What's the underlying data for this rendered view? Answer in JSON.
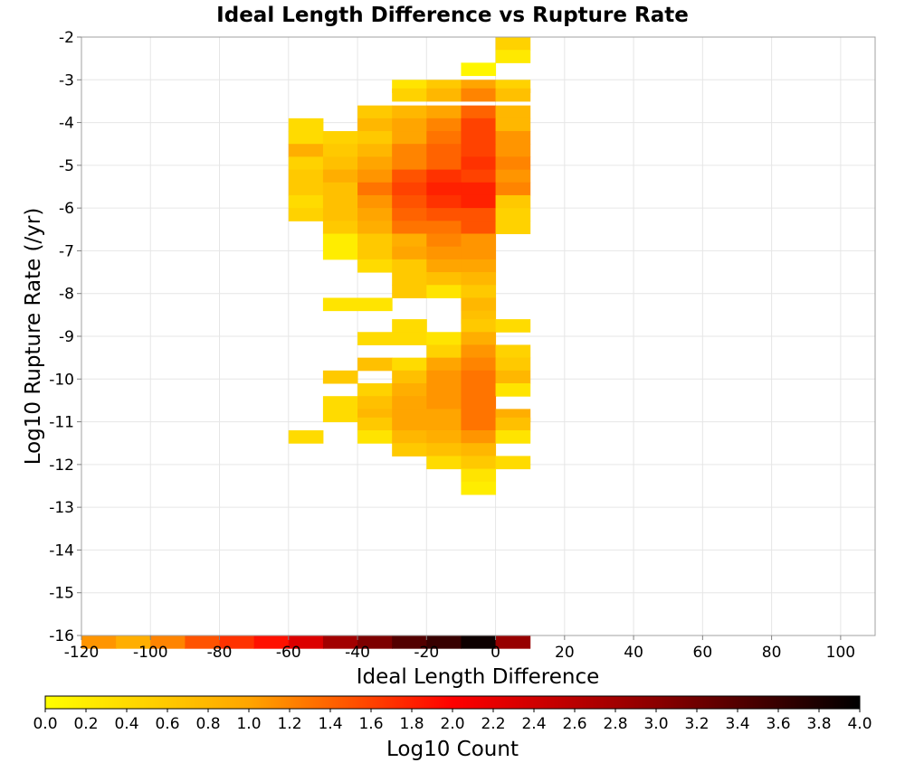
{
  "chart_data": {
    "type": "heatmap",
    "title": "Ideal Length Difference vs Rupture Rate",
    "xlabel": "Ideal Length Difference",
    "ylabel": "Log10 Rupture Rate (/yr)",
    "xlim": [
      -120,
      110
    ],
    "ylim": [
      -16,
      -2
    ],
    "xticks": [
      -120,
      -100,
      -80,
      -60,
      -40,
      -20,
      0,
      20,
      40,
      60,
      80,
      100
    ],
    "yticks": [
      -2,
      -3,
      -4,
      -5,
      -6,
      -7,
      -8,
      -9,
      -10,
      -11,
      -12,
      -13,
      -14,
      -15,
      -16
    ],
    "grid": true,
    "x_bin_width": 10,
    "y_bin_height": 0.3,
    "colorbar": {
      "label": "Log10 Count",
      "range": [
        0,
        4
      ],
      "ticks": [
        "0.0",
        "0.2",
        "0.4",
        "0.6",
        "0.8",
        "1.0",
        "1.2",
        "1.4",
        "1.6",
        "1.8",
        "2.0",
        "2.2",
        "2.4",
        "2.6",
        "2.8",
        "3.0",
        "3.2",
        "3.4",
        "3.6",
        "3.8",
        "4.0"
      ],
      "colors": [
        "#ffff00",
        "#ffa500",
        "#ff0000",
        "#8b0000",
        "#000000"
      ],
      "placement": "bottom"
    },
    "cells": [
      {
        "x": 0,
        "y": -2,
        "v": 0.5
      },
      {
        "x": 0,
        "y": -2.3,
        "v": 0.25
      },
      {
        "x": -10,
        "y": -2.6,
        "v": 0.1
      },
      {
        "x": -30,
        "y": -3.0,
        "v": 0.3
      },
      {
        "x": -20,
        "y": -3.0,
        "v": 0.6
      },
      {
        "x": -10,
        "y": -3.0,
        "v": 1.0
      },
      {
        "x": 0,
        "y": -3.0,
        "v": 0.5
      },
      {
        "x": -30,
        "y": -3.2,
        "v": 0.5
      },
      {
        "x": -20,
        "y": -3.2,
        "v": 0.8
      },
      {
        "x": -10,
        "y": -3.2,
        "v": 1.2
      },
      {
        "x": 0,
        "y": -3.2,
        "v": 0.7
      },
      {
        "x": -40,
        "y": -3.6,
        "v": 0.6
      },
      {
        "x": -30,
        "y": -3.6,
        "v": 0.8
      },
      {
        "x": -20,
        "y": -3.6,
        "v": 1.0
      },
      {
        "x": -10,
        "y": -3.6,
        "v": 1.4
      },
      {
        "x": 0,
        "y": -3.6,
        "v": 0.8
      },
      {
        "x": -60,
        "y": -3.9,
        "v": 0.4
      },
      {
        "x": -40,
        "y": -3.9,
        "v": 0.8
      },
      {
        "x": -30,
        "y": -3.9,
        "v": 1.0
      },
      {
        "x": -20,
        "y": -3.9,
        "v": 1.2
      },
      {
        "x": -10,
        "y": -3.9,
        "v": 1.6
      },
      {
        "x": 0,
        "y": -3.9,
        "v": 0.8
      },
      {
        "x": -60,
        "y": -4.2,
        "v": 0.4
      },
      {
        "x": -50,
        "y": -4.2,
        "v": 0.5
      },
      {
        "x": -40,
        "y": -4.2,
        "v": 0.6
      },
      {
        "x": -30,
        "y": -4.2,
        "v": 1.0
      },
      {
        "x": -20,
        "y": -4.2,
        "v": 1.3
      },
      {
        "x": -10,
        "y": -4.2,
        "v": 1.6
      },
      {
        "x": 0,
        "y": -4.2,
        "v": 1.1
      },
      {
        "x": -60,
        "y": -4.5,
        "v": 0.9
      },
      {
        "x": -50,
        "y": -4.5,
        "v": 0.6
      },
      {
        "x": -40,
        "y": -4.5,
        "v": 0.8
      },
      {
        "x": -30,
        "y": -4.5,
        "v": 1.2
      },
      {
        "x": -20,
        "y": -4.5,
        "v": 1.4
      },
      {
        "x": -10,
        "y": -4.5,
        "v": 1.6
      },
      {
        "x": 0,
        "y": -4.5,
        "v": 1.1
      },
      {
        "x": -60,
        "y": -4.8,
        "v": 0.5
      },
      {
        "x": -50,
        "y": -4.8,
        "v": 0.7
      },
      {
        "x": -40,
        "y": -4.8,
        "v": 1.0
      },
      {
        "x": -30,
        "y": -4.8,
        "v": 1.2
      },
      {
        "x": -20,
        "y": -4.8,
        "v": 1.4
      },
      {
        "x": -10,
        "y": -4.8,
        "v": 1.7
      },
      {
        "x": 0,
        "y": -4.8,
        "v": 1.2
      },
      {
        "x": -60,
        "y": -5.1,
        "v": 0.6
      },
      {
        "x": -50,
        "y": -5.1,
        "v": 0.9
      },
      {
        "x": -40,
        "y": -5.1,
        "v": 1.1
      },
      {
        "x": -30,
        "y": -5.1,
        "v": 1.5
      },
      {
        "x": -20,
        "y": -5.1,
        "v": 1.7
      },
      {
        "x": -10,
        "y": -5.1,
        "v": 1.6
      },
      {
        "x": 0,
        "y": -5.1,
        "v": 1.1
      },
      {
        "x": -60,
        "y": -5.4,
        "v": 0.6
      },
      {
        "x": -50,
        "y": -5.4,
        "v": 0.7
      },
      {
        "x": -40,
        "y": -5.4,
        "v": 1.3
      },
      {
        "x": -30,
        "y": -5.4,
        "v": 1.6
      },
      {
        "x": -20,
        "y": -5.4,
        "v": 1.8
      },
      {
        "x": -10,
        "y": -5.4,
        "v": 1.8
      },
      {
        "x": 0,
        "y": -5.4,
        "v": 1.2
      },
      {
        "x": -60,
        "y": -5.7,
        "v": 0.4
      },
      {
        "x": -50,
        "y": -5.7,
        "v": 0.7
      },
      {
        "x": -40,
        "y": -5.7,
        "v": 1.1
      },
      {
        "x": -30,
        "y": -5.7,
        "v": 1.5
      },
      {
        "x": -20,
        "y": -5.7,
        "v": 1.7
      },
      {
        "x": -10,
        "y": -5.7,
        "v": 1.8
      },
      {
        "x": 0,
        "y": -5.7,
        "v": 0.6
      },
      {
        "x": -60,
        "y": -6.0,
        "v": 0.5
      },
      {
        "x": -50,
        "y": -6.0,
        "v": 0.7
      },
      {
        "x": -40,
        "y": -6.0,
        "v": 1.0
      },
      {
        "x": -30,
        "y": -6.0,
        "v": 1.4
      },
      {
        "x": -20,
        "y": -6.0,
        "v": 1.5
      },
      {
        "x": -10,
        "y": -6.0,
        "v": 1.5
      },
      {
        "x": 0,
        "y": -6.0,
        "v": 0.5
      },
      {
        "x": -50,
        "y": -6.3,
        "v": 0.6
      },
      {
        "x": -40,
        "y": -6.3,
        "v": 0.9
      },
      {
        "x": -30,
        "y": -6.3,
        "v": 1.3
      },
      {
        "x": -20,
        "y": -6.3,
        "v": 1.3
      },
      {
        "x": -10,
        "y": -6.3,
        "v": 1.5
      },
      {
        "x": 0,
        "y": -6.3,
        "v": 0.5
      },
      {
        "x": -50,
        "y": -6.6,
        "v": 0.2
      },
      {
        "x": -40,
        "y": -6.6,
        "v": 0.6
      },
      {
        "x": -30,
        "y": -6.6,
        "v": 0.9
      },
      {
        "x": -20,
        "y": -6.6,
        "v": 1.2
      },
      {
        "x": -10,
        "y": -6.6,
        "v": 1.1
      },
      {
        "x": -50,
        "y": -6.9,
        "v": 0.2
      },
      {
        "x": -40,
        "y": -6.9,
        "v": 0.6
      },
      {
        "x": -30,
        "y": -6.9,
        "v": 1.0
      },
      {
        "x": -20,
        "y": -6.9,
        "v": 1.1
      },
      {
        "x": -10,
        "y": -6.9,
        "v": 1.1
      },
      {
        "x": -40,
        "y": -7.2,
        "v": 0.4
      },
      {
        "x": -30,
        "y": -7.2,
        "v": 0.6
      },
      {
        "x": -20,
        "y": -7.2,
        "v": 1.0
      },
      {
        "x": -10,
        "y": -7.2,
        "v": 1.0
      },
      {
        "x": -30,
        "y": -7.5,
        "v": 0.6
      },
      {
        "x": -20,
        "y": -7.5,
        "v": 0.7
      },
      {
        "x": -10,
        "y": -7.5,
        "v": 0.8
      },
      {
        "x": -30,
        "y": -7.8,
        "v": 0.6
      },
      {
        "x": -20,
        "y": -7.8,
        "v": 0.3
      },
      {
        "x": -10,
        "y": -7.8,
        "v": 0.6
      },
      {
        "x": -50,
        "y": -8.1,
        "v": 0.3
      },
      {
        "x": -40,
        "y": -8.1,
        "v": 0.3
      },
      {
        "x": -10,
        "y": -8.1,
        "v": 0.8
      },
      {
        "x": -10,
        "y": -8.4,
        "v": 0.7
      },
      {
        "x": -30,
        "y": -8.6,
        "v": 0.4
      },
      {
        "x": -10,
        "y": -8.6,
        "v": 0.6
      },
      {
        "x": 0,
        "y": -8.6,
        "v": 0.4
      },
      {
        "x": -40,
        "y": -8.9,
        "v": 0.4
      },
      {
        "x": -30,
        "y": -8.9,
        "v": 0.4
      },
      {
        "x": -20,
        "y": -8.9,
        "v": 0.3
      },
      {
        "x": -10,
        "y": -8.9,
        "v": 0.9
      },
      {
        "x": -20,
        "y": -9.2,
        "v": 0.5
      },
      {
        "x": -10,
        "y": -9.2,
        "v": 1.1
      },
      {
        "x": 0,
        "y": -9.2,
        "v": 0.5
      },
      {
        "x": -40,
        "y": -9.5,
        "v": 0.7
      },
      {
        "x": -30,
        "y": -9.5,
        "v": 0.4
      },
      {
        "x": -20,
        "y": -9.5,
        "v": 1.0
      },
      {
        "x": -10,
        "y": -9.5,
        "v": 1.2
      },
      {
        "x": 0,
        "y": -9.5,
        "v": 0.6
      },
      {
        "x": -50,
        "y": -9.8,
        "v": 0.6
      },
      {
        "x": -30,
        "y": -9.8,
        "v": 0.7
      },
      {
        "x": -20,
        "y": -9.8,
        "v": 1.1
      },
      {
        "x": -10,
        "y": -9.8,
        "v": 1.3
      },
      {
        "x": 0,
        "y": -9.8,
        "v": 0.8
      },
      {
        "x": -40,
        "y": -10.1,
        "v": 0.5
      },
      {
        "x": -30,
        "y": -10.1,
        "v": 0.9
      },
      {
        "x": -20,
        "y": -10.1,
        "v": 1.1
      },
      {
        "x": -10,
        "y": -10.1,
        "v": 1.3
      },
      {
        "x": 0,
        "y": -10.1,
        "v": 0.3
      },
      {
        "x": -50,
        "y": -10.4,
        "v": 0.4
      },
      {
        "x": -40,
        "y": -10.4,
        "v": 0.7
      },
      {
        "x": -30,
        "y": -10.4,
        "v": 1.0
      },
      {
        "x": -20,
        "y": -10.4,
        "v": 1.1
      },
      {
        "x": -10,
        "y": -10.4,
        "v": 1.3
      },
      {
        "x": -50,
        "y": -10.7,
        "v": 0.4
      },
      {
        "x": -40,
        "y": -10.7,
        "v": 0.8
      },
      {
        "x": -30,
        "y": -10.7,
        "v": 1.0
      },
      {
        "x": -20,
        "y": -10.7,
        "v": 1.0
      },
      {
        "x": -10,
        "y": -10.7,
        "v": 1.3
      },
      {
        "x": 0,
        "y": -10.7,
        "v": 0.9
      },
      {
        "x": -40,
        "y": -10.9,
        "v": 0.6
      },
      {
        "x": -30,
        "y": -10.9,
        "v": 1.0
      },
      {
        "x": -20,
        "y": -10.9,
        "v": 1.0
      },
      {
        "x": -10,
        "y": -10.9,
        "v": 1.3
      },
      {
        "x": 0,
        "y": -10.9,
        "v": 0.7
      },
      {
        "x": -60,
        "y": -11.2,
        "v": 0.4
      },
      {
        "x": -40,
        "y": -11.2,
        "v": 0.3
      },
      {
        "x": -30,
        "y": -11.2,
        "v": 0.8
      },
      {
        "x": -20,
        "y": -11.2,
        "v": 0.9
      },
      {
        "x": -10,
        "y": -11.2,
        "v": 1.1
      },
      {
        "x": 0,
        "y": -11.2,
        "v": 0.3
      },
      {
        "x": -30,
        "y": -11.5,
        "v": 0.6
      },
      {
        "x": -20,
        "y": -11.5,
        "v": 0.7
      },
      {
        "x": -10,
        "y": -11.5,
        "v": 0.8
      },
      {
        "x": -20,
        "y": -11.8,
        "v": 0.4
      },
      {
        "x": -10,
        "y": -11.8,
        "v": 0.6
      },
      {
        "x": 0,
        "y": -11.8,
        "v": 0.4
      },
      {
        "x": -10,
        "y": -12.1,
        "v": 0.3
      },
      {
        "x": -10,
        "y": -12.4,
        "v": 0.2
      },
      {
        "x": -120,
        "y": -16.0,
        "v": 1.1
      },
      {
        "x": -110,
        "y": -16.0,
        "v": 0.9
      },
      {
        "x": -100,
        "y": -16.0,
        "v": 1.2
      },
      {
        "x": -90,
        "y": -16.0,
        "v": 1.5
      },
      {
        "x": -80,
        "y": -16.0,
        "v": 1.7
      },
      {
        "x": -70,
        "y": -16.0,
        "v": 1.9
      },
      {
        "x": -60,
        "y": -16.0,
        "v": 2.3
      },
      {
        "x": -50,
        "y": -16.0,
        "v": 2.8
      },
      {
        "x": -40,
        "y": -16.0,
        "v": 3.1
      },
      {
        "x": -30,
        "y": -16.0,
        "v": 3.4
      },
      {
        "x": -20,
        "y": -16.0,
        "v": 3.6
      },
      {
        "x": -10,
        "y": -16.0,
        "v": 3.9
      },
      {
        "x": 0,
        "y": -16.0,
        "v": 2.9
      }
    ]
  }
}
